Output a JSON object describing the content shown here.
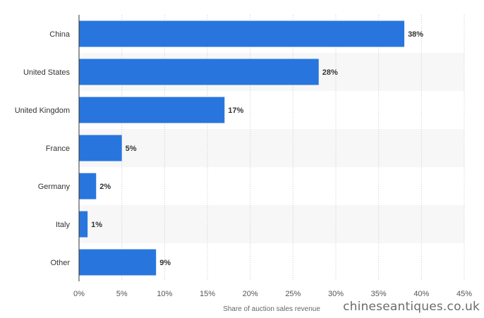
{
  "chart_data": {
    "type": "bar",
    "orientation": "horizontal",
    "categories": [
      "China",
      "United States",
      "United Kingdom",
      "France",
      "Germany",
      "Italy",
      "Other"
    ],
    "values": [
      38,
      28,
      17,
      5,
      2,
      1,
      9
    ],
    "value_labels": [
      "38%",
      "28%",
      "17%",
      "5%",
      "2%",
      "1%",
      "9%"
    ],
    "xlabel": "Share of auction sales revenue",
    "ylabel": "",
    "xlim": [
      0,
      45
    ],
    "x_ticks": [
      0,
      5,
      10,
      15,
      20,
      25,
      30,
      35,
      40,
      45
    ],
    "x_tick_labels": [
      "0%",
      "5%",
      "10%",
      "15%",
      "20%",
      "25%",
      "30%",
      "35%",
      "40%",
      "45%"
    ],
    "grid": "vertical dotted",
    "bar_color": "#2876dd",
    "band_color": "#f7f7f7"
  },
  "watermark": "chineseantiques.co.uk"
}
